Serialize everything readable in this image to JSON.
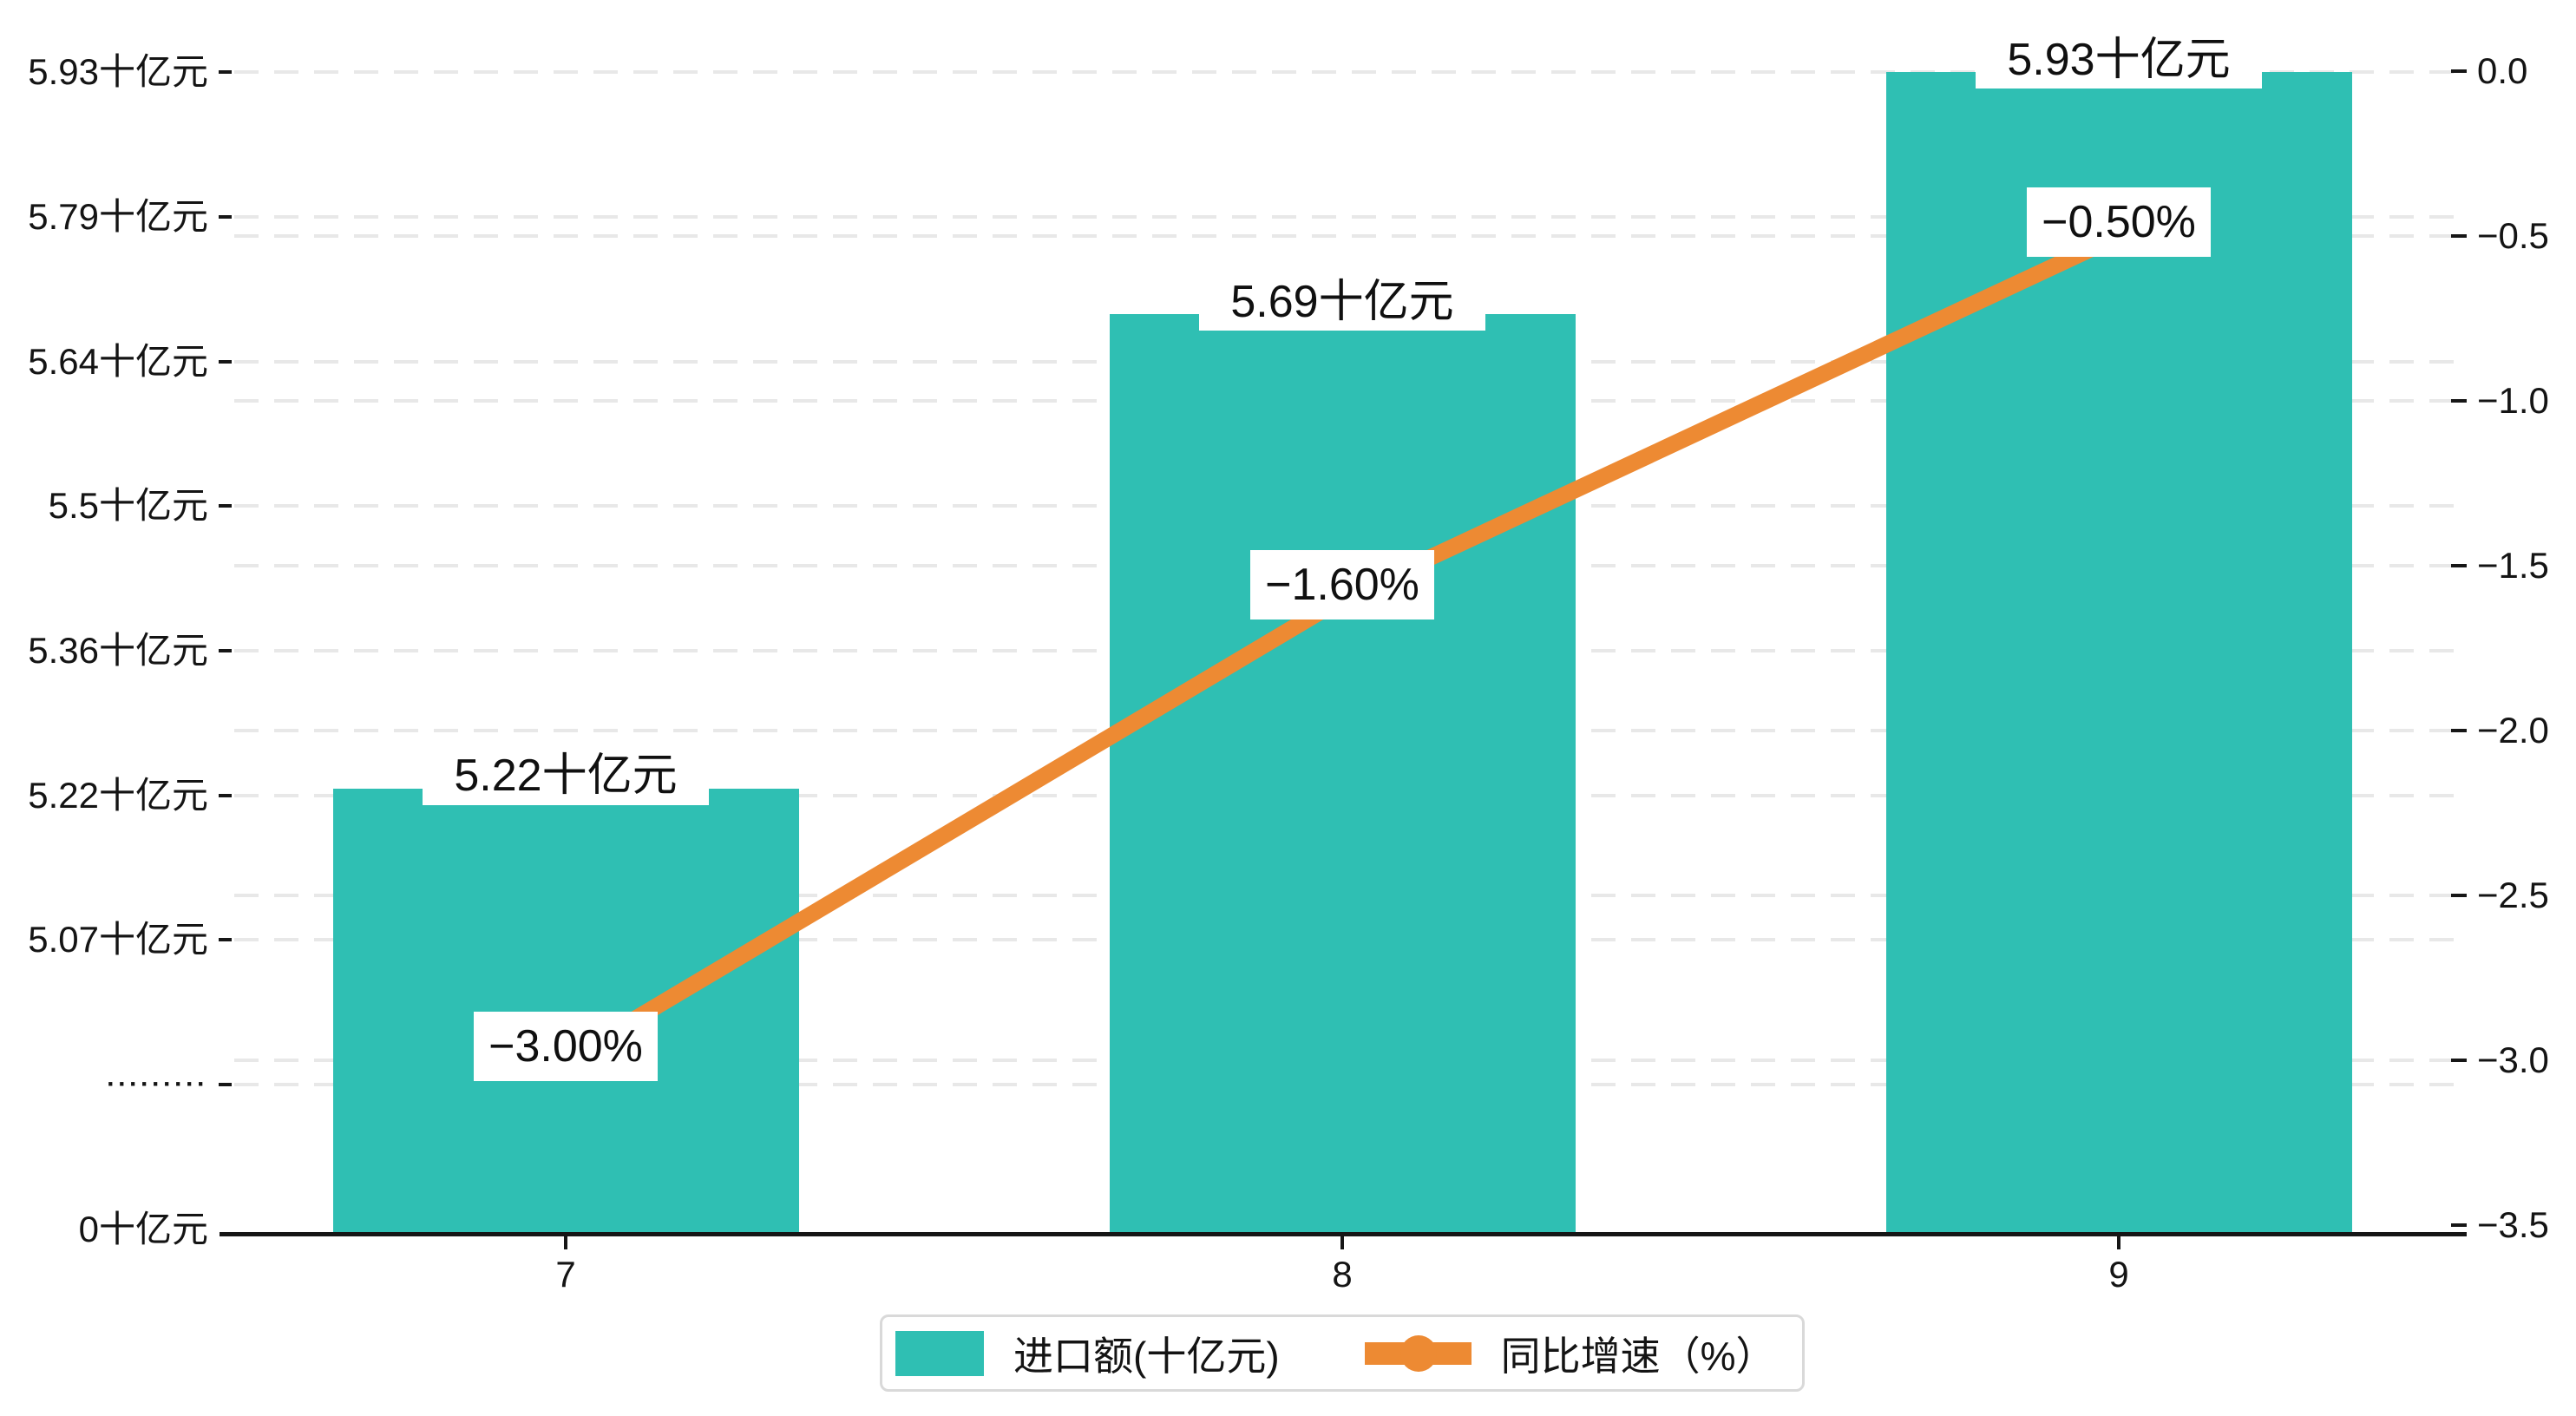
{
  "chart_data": {
    "type": "bar+line",
    "categories": [
      "7",
      "8",
      "9"
    ],
    "series": [
      {
        "name": "进口额(十亿元)",
        "type": "bar",
        "values": [
          5.22,
          5.69,
          5.93
        ],
        "value_labels": [
          "5.22十亿元",
          "5.69十亿元",
          "5.93十亿元"
        ],
        "color": "#2fbfb3",
        "axis": "left"
      },
      {
        "name": "同比增速（%）",
        "type": "line",
        "values": [
          -3.0,
          -1.6,
          -0.5
        ],
        "value_labels": [
          "−3.00%",
          "−1.60%",
          "−0.50%"
        ],
        "color": "#ed8a33",
        "axis": "right"
      }
    ],
    "left_axis": {
      "tick_labels": [
        "5.93十亿元",
        "5.79十亿元",
        "5.64十亿元",
        "5.5十亿元",
        "5.36十亿元",
        "5.22十亿元",
        "5.07十亿元",
        "·········",
        "0十亿元"
      ],
      "tick_values": [
        5.93,
        5.79,
        5.64,
        5.5,
        5.36,
        5.22,
        5.07,
        null,
        0
      ],
      "broken_axis": true,
      "unit": "十亿元"
    },
    "right_axis": {
      "tick_labels": [
        "0.0",
        "−0.5",
        "−1.0",
        "−1.5",
        "−2.0",
        "−2.5",
        "−3.0",
        "−3.5"
      ],
      "tick_values": [
        0.0,
        -0.5,
        -1.0,
        -1.5,
        -2.0,
        -2.5,
        -3.0,
        -3.5
      ],
      "range": [
        -3.5,
        0
      ],
      "unit": "%"
    },
    "x_axis": {
      "tick_labels": [
        "7",
        "8",
        "9"
      ]
    },
    "legend": {
      "position": "bottom-center",
      "items": [
        {
          "label": "进口额(十亿元)",
          "marker": "bar-swatch",
          "color": "#2fbfb3"
        },
        {
          "label": "同比增速（%）",
          "marker": "line-marker",
          "color": "#ed8a33"
        }
      ]
    },
    "title": "",
    "grid": true,
    "gridline_color": "#e8e8e8",
    "background_color": "#ffffff",
    "axis_color": "#161616",
    "text_color": "#141414"
  }
}
